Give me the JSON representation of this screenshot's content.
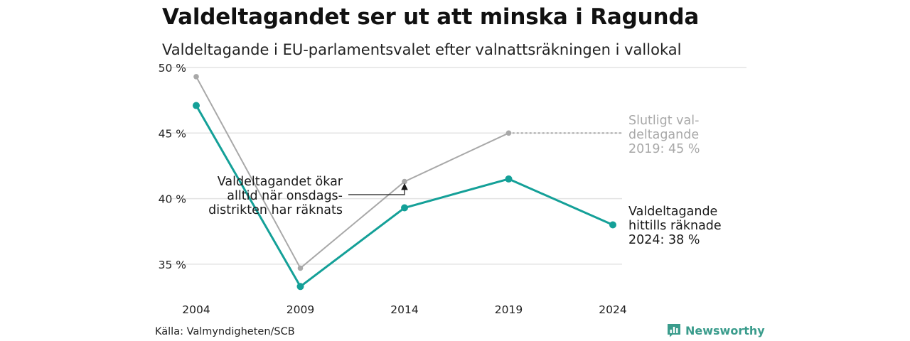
{
  "header": {
    "title": "Valdeltagandet ser ut att minska i Ragunda",
    "subtitle": "Valdeltagande i EU-parlamentsvalet efter valnattsräkningen i vallokal"
  },
  "footer": {
    "source": "Källa: Valmyndigheten/SCB",
    "brand": "Newsworthy"
  },
  "colors": {
    "teal": "#14a098",
    "gray": "#a8a8a8",
    "grid": "#e3e3e3",
    "brand": "#3a9c8c"
  },
  "chart_data": {
    "type": "line",
    "x": [
      2004,
      2009,
      2014,
      2019,
      2024
    ],
    "xticks": [
      "2004",
      "2009",
      "2014",
      "2019",
      "2024"
    ],
    "yticks": [
      35,
      40,
      45,
      50
    ],
    "ytick_labels": [
      "35 %",
      "40 %",
      "45 %",
      "50 %"
    ],
    "ylim": [
      32.5,
      50
    ],
    "grid": true,
    "series": [
      {
        "key": "final",
        "color": "#a8a8a8",
        "values": [
          49.3,
          34.7,
          41.3,
          45.0,
          null
        ]
      },
      {
        "key": "counted",
        "color": "#14a098",
        "values": [
          47.1,
          33.3,
          39.3,
          41.5,
          38.0
        ]
      }
    ],
    "extension": {
      "from_x": 2019,
      "value": 45.0,
      "style": "dotted",
      "color": "#a8a8a8"
    },
    "annotations": [
      {
        "key": "final_label",
        "lines": [
          "Slutligt val-",
          "deltagande",
          "2019: 45 %"
        ],
        "color": "#a8a8a8"
      },
      {
        "key": "current_label",
        "lines": [
          "Valdeltagande",
          "hittills räknade",
          "2024: 38 %"
        ],
        "color": "#1a1a1a"
      },
      {
        "key": "note",
        "lines": [
          "Valdeltagandet ökar",
          "alltid när onsdags-",
          "distrikten har räknats"
        ],
        "color": "#1a1a1a",
        "arrow_target": {
          "x": 2014,
          "from": 39.3,
          "to": 41.3
        }
      }
    ]
  }
}
